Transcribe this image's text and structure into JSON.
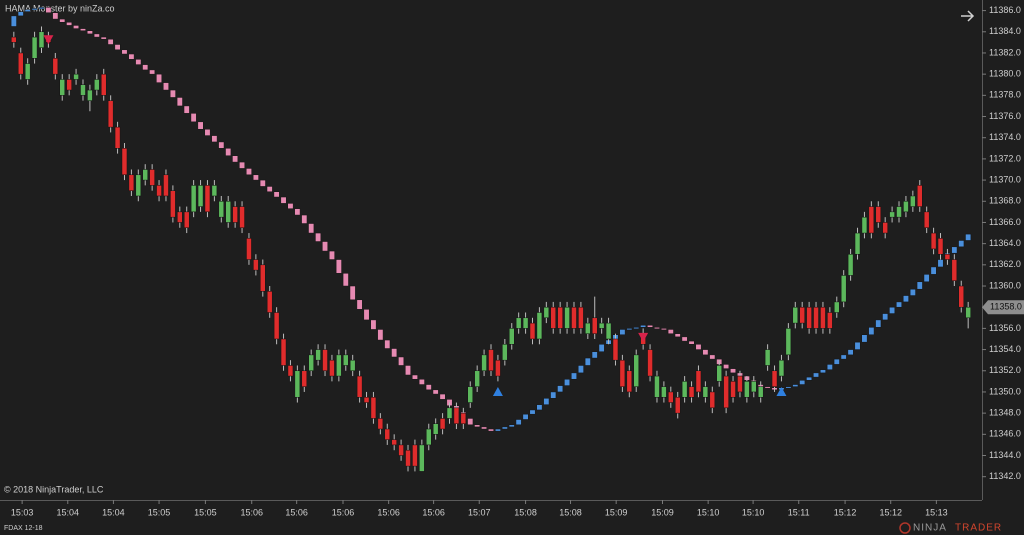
{
  "chart_data": {
    "type": "candlestick",
    "title": "HAMA Monster by ninZa.co",
    "copyright": "© 2018 NinjaTrader, LLC",
    "brand": [
      "NINJA",
      "TRADER"
    ],
    "grid": false,
    "xlim": [
      -2,
      140
    ],
    "ylim": [
      11339.8,
      11387
    ],
    "xticks": [
      {
        "value": 1.2,
        "label": "15:03"
      },
      {
        "value": 7.8,
        "label": "15:04"
      },
      {
        "value": 14.4,
        "label": "15:04"
      },
      {
        "value": 21.0,
        "label": "15:05"
      },
      {
        "value": 27.7,
        "label": "15:05"
      },
      {
        "value": 34.4,
        "label": "15:06"
      },
      {
        "value": 40.9,
        "label": "15:06"
      },
      {
        "value": 47.6,
        "label": "15:06"
      },
      {
        "value": 54.2,
        "label": "15:06"
      },
      {
        "value": 60.7,
        "label": "15:06"
      },
      {
        "value": 67.3,
        "label": "15:07"
      },
      {
        "value": 74.0,
        "label": "15:08"
      },
      {
        "value": 80.5,
        "label": "15:08"
      },
      {
        "value": 87.1,
        "label": "15:09"
      },
      {
        "value": 93.8,
        "label": "15:09"
      },
      {
        "value": 100.4,
        "label": "15:10"
      },
      {
        "value": 106.9,
        "label": "15:10"
      },
      {
        "value": 113.5,
        "label": "15:11"
      },
      {
        "value": 120.2,
        "label": "15:12"
      },
      {
        "value": 126.8,
        "label": "15:12"
      },
      {
        "value": 133.4,
        "label": "15:13"
      }
    ],
    "yticks": [
      {
        "value": 11342,
        "label": "11342.0"
      },
      {
        "value": 11344,
        "label": "11344.0"
      },
      {
        "value": 11346,
        "label": "11346.0"
      },
      {
        "value": 11348,
        "label": "11348.0"
      },
      {
        "value": 11350,
        "label": "11350.0"
      },
      {
        "value": 11352,
        "label": "11352.0"
      },
      {
        "value": 11354,
        "label": "11354.0"
      },
      {
        "value": 11356,
        "label": "11356.0"
      },
      {
        "value": 11358,
        "label": "11358.0"
      },
      {
        "value": 11360,
        "label": "11360.0"
      },
      {
        "value": 11362,
        "label": "11362.0"
      },
      {
        "value": 11364,
        "label": "11364.0"
      },
      {
        "value": 11366,
        "label": "11366.0"
      },
      {
        "value": 11368,
        "label": "11368.0"
      },
      {
        "value": 11370,
        "label": "11370.0"
      },
      {
        "value": 11372,
        "label": "11372.0"
      },
      {
        "value": 11374,
        "label": "11374.0"
      },
      {
        "value": 11376,
        "label": "11376.0"
      },
      {
        "value": 11378,
        "label": "11378.0"
      },
      {
        "value": 11380,
        "label": "11380.0"
      },
      {
        "value": 11382,
        "label": "11382.0"
      },
      {
        "value": 11384,
        "label": "11384.0"
      },
      {
        "value": 11386,
        "label": "11386.0"
      }
    ],
    "last_price": {
      "value": 11358,
      "label": "11358.0"
    },
    "series": [
      {
        "name": "FDAX 12-18",
        "up_color": "#5cb85c",
        "down_color": "#e02c2c",
        "open": [
          11383.5,
          11382,
          11379.5,
          11381.5,
          11382.5,
          11383.5,
          11381.5,
          11378,
          11379.5,
          11379.5,
          11378,
          11377.5,
          11378.5,
          11380,
          11377.5,
          11375,
          11373,
          11370.5,
          11368.5,
          11370,
          11371,
          11369.5,
          11370.5,
          11369,
          11367,
          11367,
          11367,
          11367.5,
          11369.5,
          11368.5,
          11366.5,
          11366,
          11367.5,
          11367.5,
          11364.5,
          11362.5,
          11362,
          11359.5,
          11357.5,
          11355,
          11352.5,
          11349.5,
          11352,
          11352,
          11353,
          11354,
          11353,
          11351.5,
          11352.5,
          11352,
          11351.5,
          11349.5,
          11349.5,
          11347.5,
          11346.5,
          11345.5,
          11345,
          11344.5,
          11345,
          11342.5,
          11345,
          11346,
          11347.5,
          11347.5,
          11348.5,
          11348,
          11349,
          11350.5,
          11352,
          11354,
          11353,
          11353,
          11354.5,
          11356,
          11356,
          11356.5,
          11355,
          11357,
          11358,
          11358,
          11356,
          11358,
          11358,
          11355.5,
          11357,
          11356,
          11355,
          11355,
          11353,
          11352,
          11350.5,
          11355.5,
          11354,
          11349.5,
          11349.5,
          11350,
          11349.5,
          11349.5,
          11350.5,
          11352,
          11349.5,
          11350,
          11351,
          11351.5,
          11351,
          11351.5,
          11349.5,
          11350,
          11349.5,
          11352.5,
          11352,
          11351.5,
          11353.5,
          11356.5,
          11358,
          11358,
          11358,
          11358,
          11357.5,
          11357.5,
          11358.5,
          11361,
          11363,
          11365,
          11367.5,
          11367.5,
          11366,
          11366.5,
          11366.5,
          11367,
          11367.5,
          11369.5,
          11367,
          11365,
          11364.5,
          11363,
          11362.5,
          11360,
          11357
        ],
        "high": [
          11384,
          11382.5,
          11381.5,
          11384,
          11384.5,
          11384,
          11382,
          11380,
          11380,
          11380.5,
          11379.5,
          11379,
          11380,
          11380.5,
          11378,
          11375.5,
          11373.5,
          11371,
          11371,
          11371.5,
          11371.5,
          11370,
          11371,
          11369.5,
          11367.5,
          11367.5,
          11370,
          11370,
          11370,
          11370,
          11368.5,
          11368.5,
          11368,
          11368,
          11365,
          11363,
          11362.5,
          11360,
          11358,
          11355.5,
          11353,
          11352.5,
          11352.5,
          11354,
          11354.5,
          11354.5,
          11353.5,
          11354,
          11354,
          11353.5,
          11352,
          11350,
          11350,
          11348,
          11347,
          11346,
          11345.5,
          11345,
          11345.5,
          11345.5,
          11347,
          11347.5,
          11348,
          11349,
          11349,
          11348.5,
          11351,
          11352.5,
          11354,
          11354.5,
          11353.5,
          11355,
          11356.5,
          11357.5,
          11357.5,
          11357,
          11358,
          11358.5,
          11358.5,
          11358.5,
          11358.5,
          11358.5,
          11358.5,
          11357,
          11359,
          11357,
          11357,
          11355.5,
          11353.5,
          11352.5,
          11354,
          11356,
          11354.5,
          11352,
          11351,
          11350.5,
          11350,
          11351.5,
          11351,
          11352.5,
          11351,
          11350.5,
          11353,
          11352,
          11351.5,
          11352,
          11351.5,
          11351.5,
          11351,
          11354.5,
          11352.5,
          11353.5,
          11356.5,
          11358.5,
          11358.5,
          11358.5,
          11358.5,
          11358.5,
          11358,
          11359,
          11361.5,
          11363.5,
          11365.5,
          11367,
          11368,
          11368,
          11366.5,
          11367.5,
          11368,
          11368.5,
          11369,
          11370,
          11367.5,
          11365.5,
          11365,
          11363.5,
          11363,
          11360.5,
          11358.5
        ],
        "low": [
          11382.5,
          11379.5,
          11379,
          11381,
          11382,
          11382.5,
          11379.5,
          11377.5,
          11378,
          11379,
          11377.5,
          11376.5,
          11378,
          11377.5,
          11374.5,
          11372.5,
          11370,
          11368.5,
          11368,
          11369.5,
          11369,
          11368,
          11368,
          11366,
          11365.5,
          11365,
          11366.5,
          11367,
          11366.5,
          11368,
          11366,
          11365.5,
          11365.5,
          11365,
          11362,
          11361,
          11359,
          11357,
          11354.5,
          11352,
          11351,
          11349,
          11350,
          11351.5,
          11352.5,
          11351.5,
          11351,
          11351,
          11352,
          11351.5,
          11349,
          11348.5,
          11347,
          11346,
          11345,
          11344.5,
          11343.5,
          11342.5,
          11342.5,
          11342.5,
          11344.5,
          11345.5,
          11346,
          11347,
          11346.5,
          11346.5,
          11348.5,
          11350,
          11351.5,
          11351.5,
          11351,
          11352.5,
          11354,
          11355.5,
          11355.5,
          11354.5,
          11354.5,
          11356.5,
          11355.5,
          11355.5,
          11355.5,
          11355.5,
          11355.5,
          11355,
          11355,
          11355.5,
          11354.5,
          11352.5,
          11350,
          11349.5,
          11350,
          11354,
          11351,
          11349,
          11349,
          11348.5,
          11347.5,
          11349,
          11349,
          11349.5,
          11349,
          11348,
          11350.5,
          11348,
          11349,
          11349.5,
          11349,
          11349.5,
          11349,
          11352,
          11350,
          11351,
          11353,
          11356,
          11356,
          11355.5,
          11355.5,
          11355.5,
          11355.5,
          11357,
          11358,
          11360.5,
          11362.5,
          11364.5,
          11364.5,
          11365.5,
          11364.5,
          11366,
          11366,
          11366.5,
          11367,
          11367,
          11365,
          11363,
          11362.5,
          11362,
          11360,
          11357.5,
          11356
        ],
        "close": [
          11383,
          11380,
          11381,
          11383.5,
          11384,
          11383,
          11380,
          11379.5,
          11378.5,
          11380,
          11379,
          11378.5,
          11379.5,
          11378,
          11375,
          11373,
          11370.5,
          11369,
          11370.5,
          11371,
          11369.5,
          11368.5,
          11368.5,
          11366.5,
          11366,
          11365.5,
          11369.5,
          11369.5,
          11367,
          11369.5,
          11368,
          11368,
          11366,
          11365.5,
          11362.5,
          11361.5,
          11359.5,
          11357.5,
          11355,
          11352.5,
          11351.5,
          11352,
          11350.5,
          11353.5,
          11354,
          11352,
          11351.5,
          11353.5,
          11353.5,
          11353,
          11349.5,
          11349,
          11347.5,
          11346.5,
          11345.5,
          11345,
          11344,
          11343,
          11343,
          11345,
          11346.5,
          11347,
          11346.5,
          11348.5,
          11347,
          11347,
          11350.5,
          11352,
          11353.5,
          11352,
          11351.5,
          11354.5,
          11356,
          11357,
          11357,
          11355,
          11357.5,
          11358,
          11356,
          11356,
          11358,
          11356,
          11356,
          11356.5,
          11355.5,
          11356.5,
          11356.5,
          11353,
          11350.5,
          11350,
          11353.5,
          11354.5,
          11351.5,
          11351.5,
          11350.5,
          11349,
          11348,
          11351,
          11349.5,
          11350,
          11350.5,
          11348.5,
          11352.5,
          11348.5,
          11349.5,
          11350,
          11351,
          11351,
          11350.5,
          11354,
          11350.5,
          11353,
          11356,
          11358,
          11356.5,
          11356,
          11356,
          11356,
          11356,
          11358.5,
          11361,
          11363,
          11365,
          11366.5,
          11365,
          11366,
          11365,
          11367,
          11367.5,
          11368,
          11368.5,
          11367.5,
          11365.5,
          11363.5,
          11363,
          11362.5,
          11360.5,
          11358,
          11358
        ]
      },
      {
        "up_color": "#4a8fdc",
        "down_color": "#e68ab2",
        "open": [
          11384.5,
          11385.5,
          11385.9,
          11386.1,
          11386.2,
          11386.3,
          11385.8,
          11385.2,
          11384.9,
          11384.6,
          11384.3,
          11384.1,
          11383.8,
          11383.5,
          11383.3,
          11382.8,
          11382.3,
          11381.9,
          11381.4,
          11380.9,
          11380.4,
          11380.0,
          11379.2,
          11378.5,
          11377.8,
          11377.0,
          11376.3,
          11375.5,
          11374.8,
          11374.2,
          11373.6,
          11373.0,
          11372.3,
          11371.7,
          11371.1,
          11370.5,
          11370.0,
          11369.4,
          11368.9,
          11368.4,
          11367.8,
          11367.3,
          11366.7,
          11365.9,
          11365.0,
          11364.2,
          11363.3,
          11362.5,
          11361.2,
          11360.0,
          11358.7,
          11357.8,
          11356.8,
          11355.9,
          11354.9,
          11354.1,
          11353.3,
          11352.5,
          11351.6,
          11351.2,
          11350.7,
          11350.2,
          11349.8,
          11349.3,
          11348.7,
          11348.1,
          11347.5,
          11346.9,
          11346.7,
          11346.5,
          11346.3,
          11346.5,
          11346.7,
          11346.9,
          11347.4,
          11347.9,
          11348.3,
          11348.8,
          11349.4,
          11350.0,
          11350.6,
          11351.2,
          11351.8,
          11352.5,
          11353.2,
          11353.8,
          11354.5,
          11354.9,
          11355.4,
          11355.9,
          11356.0,
          11356.1,
          11356.3,
          11356.1,
          11356.0,
          11355.9,
          11355.5,
          11355.2,
          11354.8,
          11354.5,
          11354.0,
          11353.5,
          11353.1,
          11352.6,
          11352.2,
          11351.8,
          11351.5,
          11351.1,
          11350.7,
          11350.5,
          11350.4,
          11350.2,
          11350.4,
          11350.5,
          11350.7,
          11351.1,
          11351.4,
          11351.8,
          11352.1,
          11352.6,
          11353.1,
          11353.5,
          11354.0,
          11354.7,
          11355.4,
          11356.1,
          11356.8,
          11357.4,
          11358.0,
          11358.5,
          11359.1,
          11359.7,
          11360.4,
          11361.1,
          11361.8,
          11362.5,
          11363.1,
          11363.7,
          11364.3
        ],
        "close": [
          11385.5,
          11385.9,
          11386.1,
          11386.2,
          11386.3,
          11385.8,
          11385.2,
          11384.9,
          11384.6,
          11384.3,
          11384.1,
          11383.8,
          11383.5,
          11383.3,
          11382.8,
          11382.3,
          11381.9,
          11381.4,
          11380.9,
          11380.4,
          11380.0,
          11379.2,
          11378.5,
          11377.8,
          11377.0,
          11376.3,
          11375.5,
          11374.8,
          11374.2,
          11373.6,
          11373.0,
          11372.3,
          11371.7,
          11371.1,
          11370.5,
          11370.0,
          11369.4,
          11368.9,
          11368.4,
          11367.8,
          11367.3,
          11366.7,
          11365.9,
          11365.0,
          11364.2,
          11363.3,
          11362.5,
          11361.2,
          11360.0,
          11358.7,
          11357.8,
          11356.8,
          11355.9,
          11354.9,
          11354.1,
          11353.3,
          11352.5,
          11351.6,
          11351.2,
          11350.7,
          11350.2,
          11349.8,
          11349.3,
          11348.7,
          11348.1,
          11347.5,
          11346.9,
          11346.7,
          11346.5,
          11346.3,
          11346.5,
          11346.7,
          11346.9,
          11347.4,
          11347.9,
          11348.3,
          11348.8,
          11349.4,
          11350.0,
          11350.6,
          11351.2,
          11351.8,
          11352.5,
          11353.2,
          11353.8,
          11354.5,
          11354.9,
          11355.4,
          11355.9,
          11356.0,
          11356.1,
          11356.3,
          11356.1,
          11356.0,
          11355.9,
          11355.5,
          11355.2,
          11354.8,
          11354.5,
          11354.0,
          11353.5,
          11353.1,
          11352.6,
          11352.2,
          11351.8,
          11351.5,
          11351.1,
          11350.7,
          11350.5,
          11350.4,
          11350.2,
          11350.4,
          11350.5,
          11350.7,
          11351.1,
          11351.4,
          11351.8,
          11352.1,
          11352.6,
          11353.1,
          11353.5,
          11354.0,
          11354.7,
          11355.4,
          11356.1,
          11356.8,
          11357.4,
          11358.0,
          11358.5,
          11359.1,
          11359.7,
          11360.4,
          11361.1,
          11361.8,
          11362.5,
          11363.1,
          11363.7,
          11364.3,
          11364.9
        ]
      }
    ],
    "signals": {
      "buy": {
        "color": "#2f80e0",
        "x": [
          70,
          111
        ],
        "values": [
          11350,
          11350
        ]
      },
      "sell": {
        "color": "#d8234a",
        "x": [
          5,
          91
        ],
        "values": [
          11383.3,
          11355.2
        ]
      }
    }
  }
}
